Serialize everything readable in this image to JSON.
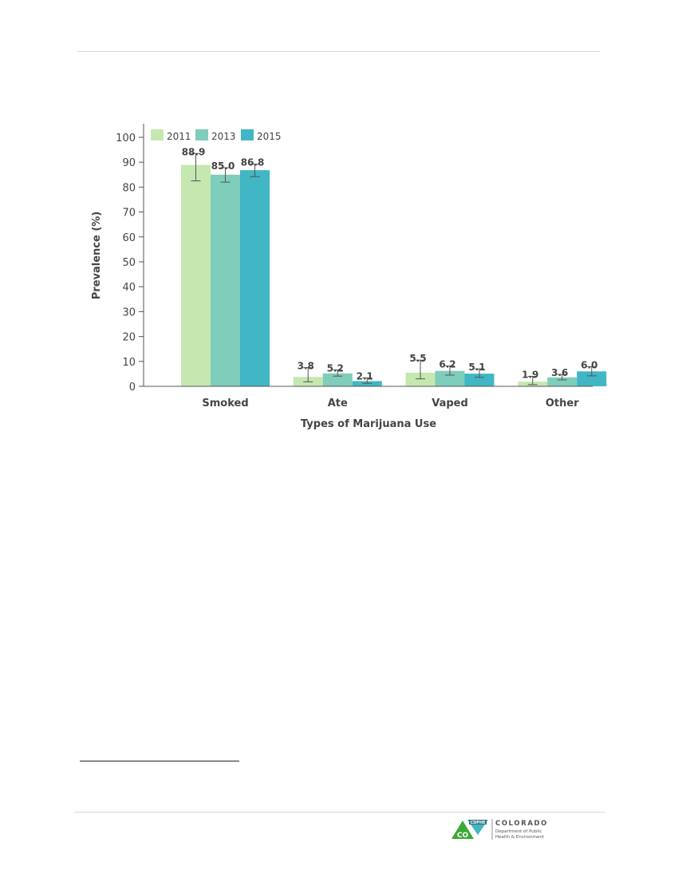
{
  "chart_data": {
    "type": "bar",
    "categories": [
      "Smoked",
      "Ate",
      "Vaped",
      "Other"
    ],
    "series": [
      {
        "name": "2011",
        "color": "#c5e8b0",
        "values": [
          88.9,
          3.8,
          5.5,
          1.9
        ],
        "ci": [
          [
            82.5,
            93.5
          ],
          [
            1.8,
            7.5
          ],
          [
            3.0,
            10.5
          ],
          [
            0.7,
            4.0
          ]
        ]
      },
      {
        "name": "2013",
        "color": "#7fcdbb",
        "values": [
          85.0,
          5.2,
          6.2,
          3.6
        ],
        "ci": [
          [
            82.0,
            87.8
          ],
          [
            4.1,
            6.6
          ],
          [
            4.5,
            8.2
          ],
          [
            2.6,
            4.8
          ]
        ]
      },
      {
        "name": "2015",
        "color": "#41b6c4",
        "values": [
          86.8,
          2.1,
          5.1,
          6.0
        ],
        "ci": [
          [
            84.2,
            89.2
          ],
          [
            1.2,
            3.4
          ],
          [
            3.6,
            7.0
          ],
          [
            4.2,
            7.9
          ]
        ]
      }
    ],
    "data_labels": [
      [
        "88.9",
        "3.8",
        "5.5",
        "1.9"
      ],
      [
        "85.0",
        "5.2",
        "6.2",
        "3.6"
      ],
      [
        "86.8",
        "2.1",
        "5.1",
        "6.0"
      ]
    ],
    "xlabel": "Types of Marijuana Use",
    "ylabel": "Prevalence (%)",
    "ylim": [
      0,
      100
    ],
    "yticks": [
      "0",
      "10",
      "20",
      "30",
      "40",
      "50",
      "60",
      "70",
      "80",
      "90",
      "100"
    ],
    "legend_position": "top-left",
    "grid": false,
    "error_bars": true
  },
  "footer": {
    "logo_badge": "CDPHE",
    "logo_state": "CO",
    "logo_title": "COLORADO",
    "logo_line1": "Department of Public",
    "logo_line2": "Health & Environment"
  }
}
